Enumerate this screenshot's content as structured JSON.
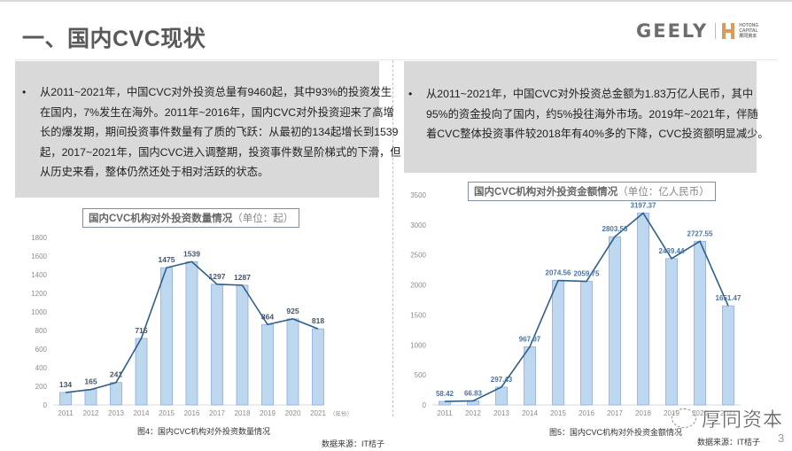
{
  "header": {
    "title": "一、国内CVC现状",
    "logo_primary": "GEELY",
    "logo_secondary_lines": [
      "HOTONG",
      "CAPITAL",
      "厚同资本"
    ]
  },
  "left": {
    "bullet": "•",
    "text_lines": [
      "从2011~2021年，中国CVC对外投资总量有9460起，其中93%的投资发生",
      "在国内，7%发生在海外。2011年~2016年，国内CVC对外投资迎来了高增",
      "长的爆发期，期间投资事件数量有了质的飞跃：从最初的134起增长到1539",
      "起，2017~2021年，国内CVC进入调整期，投资事件数呈阶梯式的下滑，但",
      "从历史来看，整体仍然还处于相对活跃的状态。"
    ],
    "chart_title_main": "国内CVC机构对外投资数量情况",
    "chart_title_unit": "（单位：起）",
    "caption": "图4：国内CVC机构对外投资数量情况",
    "source": "数据来源：IT桔子",
    "x_unit": "（年份）"
  },
  "right": {
    "bullet": "•",
    "text_lines": [
      "从2011~2021年，中国CVC对外投资总金额为1.83万亿人民币，其中",
      "95%的资金投向了国内，约5%投往海外市场。2019年~2021年，伴随",
      "着CVC整体投资事件较2018年有40%多的下降，CVC投资额明显减少。"
    ],
    "chart_title_main": "国内CVC机构对外投资金额情况",
    "chart_title_unit": "（单位：亿人民币）",
    "caption": "图5：国内CVC机构对外投资金额情况",
    "source": "数据来源：IT桔子"
  },
  "watermark": "厚同资本",
  "page_number": "3",
  "colors": {
    "bar_fill": "#bdd7ee",
    "bar_stroke": "#8faadc",
    "line": "#2e5f8a",
    "label": "#44546a",
    "label_right": "#4a74a8",
    "axis_text": "#8c8c8c",
    "text_box": "#d9d9d9"
  },
  "chart_data": [
    {
      "type": "bar",
      "title": "国内CVC机构对外投资数量情况（单位：起）",
      "xlabel": "（年份）",
      "ylabel": "",
      "categories": [
        "2011",
        "2012",
        "2013",
        "2014",
        "2015",
        "2016",
        "2017",
        "2018",
        "2019",
        "2020",
        "2021"
      ],
      "values": [
        134,
        165,
        241,
        715,
        1475,
        1539,
        1297,
        1287,
        864,
        925,
        818
      ],
      "yticks": [
        0,
        200,
        400,
        600,
        800,
        1000,
        1200,
        1400,
        1600,
        1800
      ],
      "ylim": [
        0,
        1800
      ],
      "overlay_line": true,
      "data_labels": true,
      "grid": false,
      "legend": "none"
    },
    {
      "type": "bar",
      "title": "国内CVC机构对外投资金额情况（单位：亿人民币）",
      "xlabel": "",
      "ylabel": "",
      "categories": [
        "2011",
        "2012",
        "2013",
        "2014",
        "2015",
        "2016",
        "2017",
        "2018",
        "2019",
        "2020",
        "2021"
      ],
      "values": [
        58.42,
        66.83,
        297.43,
        967.97,
        2074.56,
        2059.75,
        2803.53,
        3197.37,
        2439.44,
        2727.55,
        1651.47
      ],
      "yticks": [
        0,
        500,
        1000,
        1500,
        2000,
        2500,
        3000,
        3500
      ],
      "ylim": [
        0,
        3500
      ],
      "overlay_line": true,
      "data_labels": true,
      "grid": false,
      "legend": "none"
    }
  ]
}
